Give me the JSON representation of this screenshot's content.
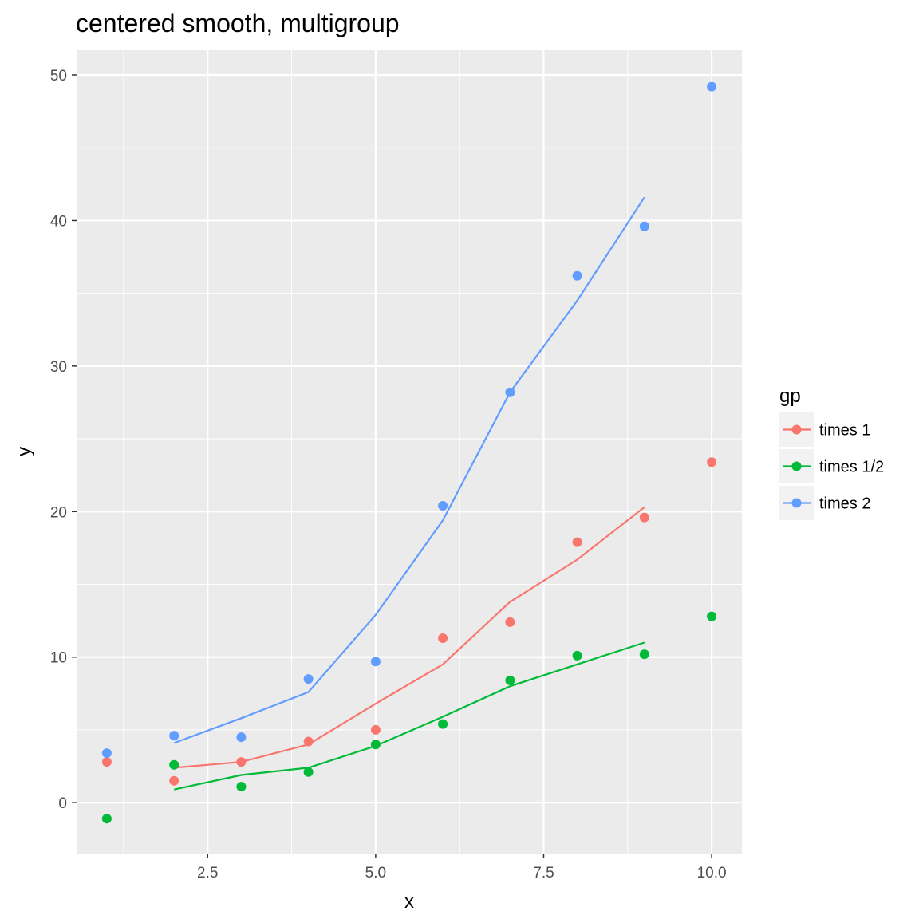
{
  "chart_data": {
    "type": "scatter",
    "title": "centered smooth, multigroup",
    "xlabel": "x",
    "ylabel": "y",
    "xlim": [
      0.55,
      10.45
    ],
    "ylim": [
      -3.5,
      51.7
    ],
    "x_ticks": [
      2.5,
      5.0,
      7.5,
      10.0
    ],
    "x_tick_labels": [
      "2.5",
      "5.0",
      "7.5",
      "10.0"
    ],
    "y_ticks": [
      0,
      10,
      20,
      30,
      40,
      50
    ],
    "y_tick_labels": [
      "0",
      "10",
      "20",
      "30",
      "40",
      "50"
    ],
    "grid": true,
    "legend": {
      "title": "gp",
      "position": "right"
    },
    "series": [
      {
        "name": "times 1",
        "color": "#F8766D",
        "points": {
          "x": [
            1,
            2,
            3,
            4,
            5,
            6,
            7,
            8,
            9,
            10
          ],
          "y": [
            2.8,
            1.5,
            2.8,
            4.2,
            5.0,
            11.3,
            12.4,
            17.9,
            19.6,
            23.4
          ]
        },
        "line": {
          "x": [
            2,
            3,
            4,
            5,
            6,
            7,
            8,
            9
          ],
          "y": [
            2.4,
            2.8,
            4.0,
            6.8,
            9.5,
            13.8,
            16.7,
            20.3
          ]
        }
      },
      {
        "name": "times 1/2",
        "color": "#00BA38",
        "points": {
          "x": [
            1,
            2,
            3,
            4,
            5,
            6,
            7,
            8,
            9,
            10
          ],
          "y": [
            -1.1,
            2.6,
            1.1,
            2.1,
            4.0,
            5.4,
            8.4,
            10.1,
            10.2,
            12.8
          ]
        },
        "line": {
          "x": [
            2,
            3,
            4,
            5,
            6,
            7,
            8,
            9
          ],
          "y": [
            0.9,
            1.9,
            2.4,
            3.9,
            5.9,
            8.0,
            9.5,
            11.0
          ]
        }
      },
      {
        "name": "times 2",
        "color": "#619CFF",
        "points": {
          "x": [
            1,
            2,
            3,
            4,
            5,
            6,
            7,
            8,
            9,
            10
          ],
          "y": [
            3.4,
            4.6,
            4.5,
            8.5,
            9.7,
            20.4,
            28.2,
            36.2,
            39.6,
            49.2
          ]
        },
        "line": {
          "x": [
            2,
            3,
            4,
            5,
            6,
            7,
            8,
            9
          ],
          "y": [
            4.1,
            5.8,
            7.6,
            12.9,
            19.4,
            28.2,
            34.5,
            41.6
          ]
        }
      }
    ]
  },
  "colors": {
    "panel_background": "#EBEBEB",
    "gridline": "#FFFFFF",
    "legend_key_background": "#F2F2F2"
  }
}
